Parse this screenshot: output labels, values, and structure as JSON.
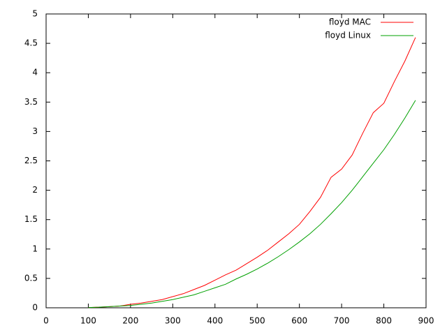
{
  "chart_data": {
    "type": "line",
    "x": [
      100,
      125,
      150,
      175,
      200,
      225,
      250,
      275,
      300,
      325,
      350,
      375,
      400,
      425,
      450,
      475,
      500,
      525,
      550,
      575,
      600,
      625,
      650,
      675,
      700,
      725,
      750,
      775,
      800,
      825,
      850,
      875
    ],
    "series": [
      {
        "name": "floyd MAC",
        "color": "#ff0000",
        "values": [
          0.005,
          0.01,
          0.02,
          0.03,
          0.06,
          0.08,
          0.11,
          0.14,
          0.19,
          0.24,
          0.31,
          0.38,
          0.47,
          0.56,
          0.64,
          0.75,
          0.86,
          0.98,
          1.12,
          1.26,
          1.42,
          1.64,
          1.88,
          2.22,
          2.36,
          2.6,
          2.97,
          3.32,
          3.48,
          3.85,
          4.2,
          4.6
        ]
      },
      {
        "name": "floyd Linux",
        "color": "#00a000",
        "values": [
          0.005,
          0.01,
          0.02,
          0.03,
          0.04,
          0.06,
          0.08,
          0.11,
          0.14,
          0.18,
          0.22,
          0.28,
          0.34,
          0.4,
          0.49,
          0.57,
          0.66,
          0.76,
          0.87,
          0.99,
          1.12,
          1.26,
          1.42,
          1.6,
          1.79,
          2.0,
          2.23,
          2.46,
          2.69,
          2.95,
          3.23,
          3.53
        ]
      }
    ],
    "xlim": [
      0,
      900
    ],
    "xticks": [
      0,
      100,
      200,
      300,
      400,
      500,
      600,
      700,
      800,
      900
    ],
    "ylim": [
      0,
      5
    ],
    "yticks": [
      0,
      0.5,
      1,
      1.5,
      2,
      2.5,
      3,
      3.5,
      4,
      4.5,
      5
    ],
    "grid": false,
    "legend": "top-right"
  }
}
